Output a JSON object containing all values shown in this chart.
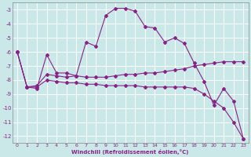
{
  "xlabel": "Windchill (Refroidissement éolien,°C)",
  "background_color": "#cbe8e8",
  "grid_color": "#ffffff",
  "line_color": "#882288",
  "xlim": [
    -0.5,
    23.5
  ],
  "ylim": [
    -12.5,
    -2.5
  ],
  "yticks": [
    -12,
    -11,
    -10,
    -9,
    -8,
    -7,
    -6,
    -5,
    -4,
    -3
  ],
  "xticks": [
    0,
    1,
    2,
    3,
    4,
    5,
    6,
    7,
    8,
    9,
    10,
    11,
    12,
    13,
    14,
    15,
    16,
    17,
    18,
    19,
    20,
    21,
    22,
    23
  ],
  "series1_x": [
    0,
    1,
    2,
    3,
    4,
    5,
    6,
    7,
    8,
    9,
    10,
    11,
    12,
    13,
    14,
    15,
    16,
    17,
    18,
    19,
    20,
    21,
    22,
    23
  ],
  "series1_y": [
    -6.0,
    -8.5,
    -8.6,
    -6.2,
    -7.5,
    -7.5,
    -7.7,
    -5.3,
    -5.6,
    -3.4,
    -2.9,
    -2.9,
    -3.1,
    -4.2,
    -4.3,
    -5.3,
    -5.0,
    -5.4,
    -6.8,
    -8.1,
    -9.8,
    -8.6,
    -9.5,
    -12.2
  ],
  "series2_x": [
    0,
    1,
    2,
    3,
    4,
    5,
    6,
    7,
    8,
    9,
    10,
    11,
    12,
    13,
    14,
    15,
    16,
    17,
    18,
    19,
    20,
    21,
    22,
    23
  ],
  "series2_y": [
    -6.0,
    -8.5,
    -8.4,
    -7.6,
    -7.7,
    -7.8,
    -7.7,
    -7.8,
    -7.8,
    -7.8,
    -7.7,
    -7.6,
    -7.6,
    -7.5,
    -7.5,
    -7.4,
    -7.3,
    -7.2,
    -7.0,
    -6.9,
    -6.8,
    -6.7,
    -6.7,
    -6.7
  ],
  "series3_x": [
    0,
    1,
    2,
    3,
    4,
    5,
    6,
    7,
    8,
    9,
    10,
    11,
    12,
    13,
    14,
    15,
    16,
    17,
    18,
    19,
    20,
    21,
    22,
    23
  ],
  "series3_y": [
    -6.0,
    -8.5,
    -8.5,
    -8.0,
    -8.1,
    -8.2,
    -8.2,
    -8.3,
    -8.3,
    -8.4,
    -8.4,
    -8.4,
    -8.4,
    -8.5,
    -8.5,
    -8.5,
    -8.5,
    -8.5,
    -8.6,
    -9.0,
    -9.5,
    -10.0,
    -11.0,
    -12.2
  ],
  "markersize": 2.0,
  "linewidth": 0.8
}
